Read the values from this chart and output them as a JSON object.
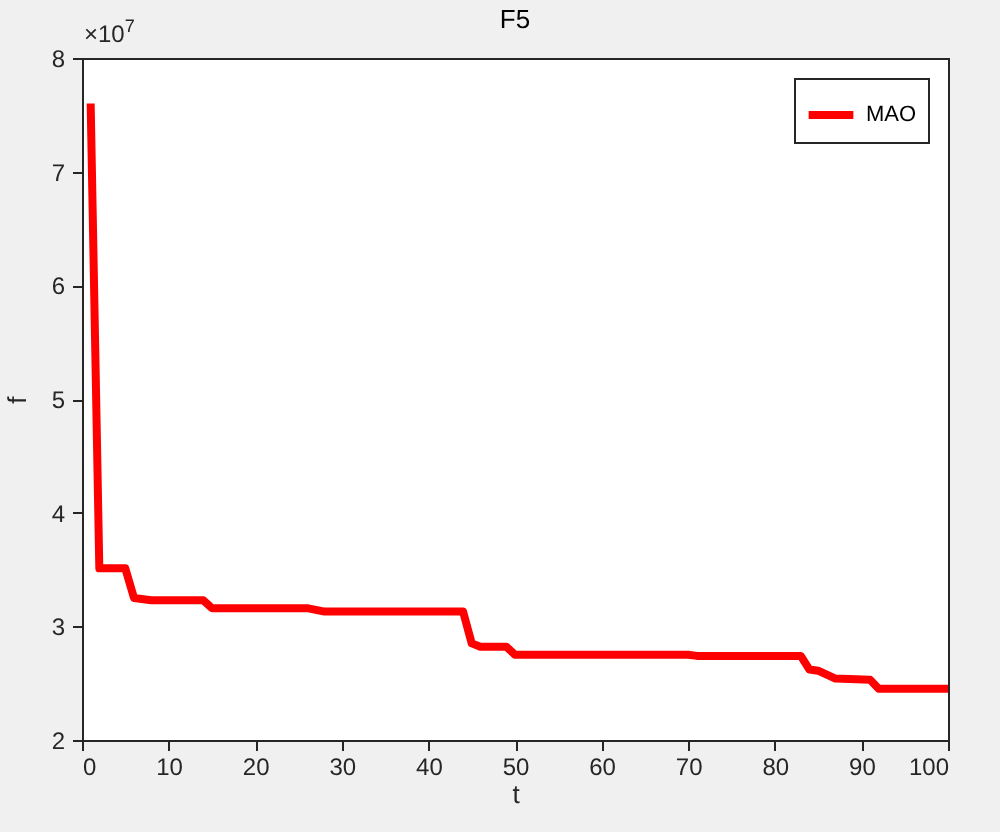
{
  "chart_data": {
    "type": "line",
    "title": "F5",
    "xlabel": "t",
    "ylabel": "f",
    "annotations": [
      "×10$^{7}$"
    ],
    "x": [
      1,
      2,
      5,
      6,
      8,
      14,
      15,
      26,
      28,
      44,
      45,
      46,
      49,
      50,
      70,
      71,
      83,
      84,
      85,
      87,
      91,
      92,
      100
    ],
    "series": [
      {
        "name": "MAO",
        "color": "#ff0000",
        "values": [
          7.6,
          3.51,
          3.51,
          3.25,
          3.23,
          3.23,
          3.16,
          3.16,
          3.13,
          3.13,
          2.85,
          2.82,
          2.82,
          2.75,
          2.75,
          2.74,
          2.74,
          2.62,
          2.61,
          2.54,
          2.53,
          2.45,
          2.45
        ]
      }
    ],
    "xlim": [
      0,
      100
    ],
    "xticks": [
      0,
      10,
      20,
      30,
      40,
      50,
      60,
      70,
      80,
      90,
      100
    ],
    "ylim": [
      2,
      8
    ],
    "yticks": [
      2,
      3,
      4,
      5,
      6,
      7,
      8
    ],
    "grid": false,
    "legend": "top right",
    "line_style": "solid",
    "marker": "none"
  }
}
